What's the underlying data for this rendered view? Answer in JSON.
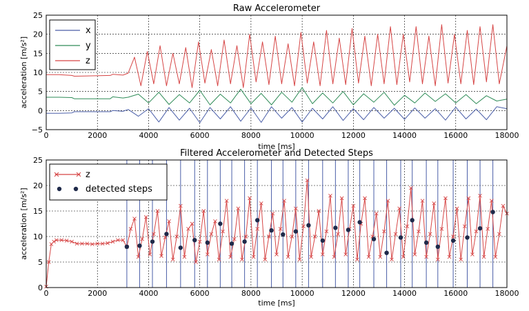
{
  "chart_data": [
    {
      "type": "line",
      "title": "Raw Accelerometer",
      "xlabel": "time [ms]",
      "ylabel": "acceleration [m/s²]",
      "xlim": [
        0,
        18000
      ],
      "ylim": [
        -5,
        25
      ],
      "xticks": [
        "0",
        "2000",
        "4000",
        "6000",
        "8000",
        "10000",
        "12000",
        "14000",
        "16000",
        "18000"
      ],
      "yticks": [
        "−5",
        "0",
        "5",
        "10",
        "15",
        "20",
        "25"
      ],
      "grid": true,
      "legend_position": "top-left",
      "series": [
        {
          "name": "x",
          "color": "#4a5ea8",
          "x": [
            0,
            500,
            1000,
            1100,
            2500,
            2600,
            3000,
            3200,
            3600,
            4000,
            4400,
            4800,
            5200,
            5600,
            6000,
            6400,
            6800,
            7200,
            7600,
            8000,
            8400,
            8800,
            9200,
            9600,
            10000,
            10400,
            10800,
            11200,
            11600,
            12000,
            12400,
            12800,
            13200,
            13600,
            14000,
            14400,
            14800,
            15200,
            15600,
            16000,
            16400,
            16800,
            17200,
            17600,
            18000
          ],
          "values": [
            -0.7,
            -0.7,
            -0.6,
            -0.3,
            -0.3,
            0.0,
            -0.2,
            0.3,
            -1.5,
            0.5,
            -3.0,
            0.8,
            -2.5,
            0.6,
            -3.2,
            0.8,
            -2.2,
            1.0,
            -2.8,
            0.7,
            -3.1,
            1.0,
            -2.0,
            0.8,
            -3.0,
            0.6,
            -2.2,
            1.0,
            -2.6,
            0.5,
            -2.4,
            0.8,
            -2.0,
            0.6,
            -2.3,
            0.7,
            -2.0,
            0.5,
            -2.5,
            0.9,
            -2.2,
            0.4,
            -2.4,
            1.0,
            0.5
          ]
        },
        {
          "name": "y",
          "color": "#2e8b57",
          "x": [
            0,
            500,
            1000,
            1100,
            2500,
            2600,
            3000,
            3200,
            3600,
            4000,
            4400,
            4800,
            5200,
            5600,
            6000,
            6400,
            6800,
            7200,
            7600,
            8000,
            8400,
            8800,
            9200,
            9600,
            10000,
            10400,
            10800,
            11200,
            11600,
            12000,
            12400,
            12800,
            13200,
            13600,
            14000,
            14400,
            14800,
            15200,
            15600,
            16000,
            16400,
            16800,
            17200,
            17600,
            18000
          ],
          "values": [
            3.5,
            3.5,
            3.4,
            3.1,
            3.1,
            3.6,
            3.3,
            3.5,
            4.3,
            2.0,
            4.8,
            1.6,
            4.2,
            2.0,
            5.3,
            1.5,
            4.3,
            2.0,
            5.6,
            1.8,
            4.5,
            1.5,
            4.8,
            2.2,
            6.0,
            1.8,
            4.6,
            2.0,
            5.0,
            1.5,
            4.4,
            2.2,
            4.8,
            1.4,
            4.0,
            2.0,
            4.6,
            2.4,
            4.4,
            2.0,
            4.2,
            1.8,
            3.9,
            2.5,
            3.0
          ]
        },
        {
          "name": "z",
          "color": "#d64545",
          "x": [
            0,
            500,
            1000,
            1100,
            2500,
            2600,
            3000,
            3200,
            3450,
            3700,
            3950,
            4200,
            4450,
            4700,
            4950,
            5200,
            5450,
            5700,
            5950,
            6200,
            6450,
            6700,
            6950,
            7200,
            7450,
            7700,
            7950,
            8200,
            8450,
            8700,
            8950,
            9200,
            9450,
            9700,
            9950,
            10200,
            10450,
            10700,
            10950,
            11200,
            11450,
            11700,
            11950,
            12200,
            12450,
            12700,
            12950,
            13200,
            13450,
            13700,
            13950,
            14200,
            14450,
            14700,
            14950,
            15200,
            15450,
            15700,
            15950,
            16200,
            16450,
            16700,
            16950,
            17200,
            17450,
            17700,
            18000
          ],
          "values": [
            9.4,
            9.4,
            9.2,
            9.0,
            9.2,
            9.5,
            9.3,
            9.8,
            14.0,
            6.5,
            15.5,
            7.0,
            17.0,
            6.5,
            15.0,
            7.0,
            16.5,
            6.0,
            18.0,
            7.2,
            16.0,
            6.5,
            18.5,
            7.0,
            17.0,
            6.0,
            20.0,
            7.5,
            18.0,
            6.8,
            19.5,
            7.0,
            17.5,
            6.5,
            20.5,
            7.2,
            18.0,
            6.5,
            21.0,
            7.0,
            19.0,
            6.8,
            21.5,
            7.2,
            19.5,
            6.5,
            20.0,
            7.0,
            22.0,
            6.8,
            20.0,
            7.5,
            22.0,
            7.0,
            19.5,
            6.5,
            22.5,
            7.2,
            20.0,
            7.0,
            21.0,
            6.8,
            22.0,
            7.5,
            22.5,
            7.0,
            17.0
          ]
        }
      ]
    },
    {
      "type": "line",
      "title": "Filtered Accelerometer and Detected Steps",
      "xlabel": "time [ms]",
      "ylabel": "acceleration [m/s²]",
      "xlim": [
        0,
        18000
      ],
      "ylim": [
        0,
        25
      ],
      "xticks": [
        "0",
        "2000",
        "4000",
        "6000",
        "8000",
        "10000",
        "12000",
        "14000",
        "16000",
        "18000"
      ],
      "yticks": [
        "0",
        "5",
        "10",
        "15",
        "20",
        "25"
      ],
      "grid": true,
      "legend_position": "top-left",
      "series": [
        {
          "name": "z",
          "color": "#d64545",
          "marker": "x",
          "x": [
            0,
            100,
            200,
            300,
            400,
            600,
            800,
            1000,
            1200,
            1400,
            1600,
            1800,
            2000,
            2200,
            2400,
            2600,
            2800,
            3000,
            3150,
            3300,
            3450,
            3600,
            3750,
            3900,
            4050,
            4200,
            4350,
            4500,
            4650,
            4800,
            4950,
            5100,
            5250,
            5400,
            5550,
            5700,
            5850,
            6000,
            6150,
            6300,
            6450,
            6600,
            6750,
            6900,
            7050,
            7200,
            7350,
            7500,
            7650,
            7800,
            7950,
            8100,
            8250,
            8400,
            8550,
            8700,
            8850,
            9000,
            9150,
            9300,
            9450,
            9600,
            9750,
            9900,
            10050,
            10200,
            10350,
            10500,
            10650,
            10800,
            10950,
            11100,
            11250,
            11400,
            11550,
            11700,
            11850,
            12000,
            12150,
            12300,
            12450,
            12600,
            12750,
            12900,
            13050,
            13200,
            13350,
            13500,
            13650,
            13800,
            13950,
            14100,
            14250,
            14400,
            14550,
            14700,
            14850,
            15000,
            15150,
            15300,
            15450,
            15600,
            15750,
            15900,
            16050,
            16200,
            16350,
            16500,
            16650,
            16800,
            16950,
            17100,
            17250,
            17400,
            17550,
            17700,
            17850,
            18000
          ],
          "values": [
            0.2,
            5.0,
            8.5,
            9.0,
            9.3,
            9.3,
            9.2,
            9.0,
            8.6,
            8.6,
            8.6,
            8.5,
            8.6,
            8.6,
            8.7,
            9.0,
            9.3,
            9.3,
            8.0,
            11.5,
            13.5,
            6.0,
            9.5,
            13.8,
            6.5,
            10.5,
            15.0,
            6.2,
            9.8,
            13.0,
            5.5,
            10.0,
            16.0,
            6.0,
            11.5,
            12.5,
            5.0,
            9.0,
            15.0,
            6.5,
            10.5,
            13.0,
            5.5,
            11.0,
            17.0,
            6.0,
            9.5,
            15.5,
            5.5,
            10.0,
            17.5,
            6.0,
            11.5,
            16.5,
            5.5,
            10.0,
            14.5,
            6.5,
            11.5,
            17.0,
            6.0,
            10.0,
            15.5,
            5.5,
            12.0,
            21.0,
            6.0,
            10.0,
            15.0,
            6.5,
            11.0,
            18.0,
            6.0,
            10.5,
            17.5,
            6.5,
            11.5,
            16.0,
            5.5,
            12.5,
            17.5,
            6.0,
            10.0,
            14.5,
            6.0,
            11.0,
            17.0,
            5.5,
            10.5,
            15.5,
            6.0,
            12.0,
            19.5,
            6.5,
            11.0,
            17.0,
            6.0,
            10.5,
            16.5,
            5.5,
            11.5,
            17.5,
            6.0,
            10.0,
            15.5,
            5.5,
            12.0,
            17.5,
            6.5,
            11.0,
            18.0,
            6.0,
            11.5,
            17.0,
            6.0,
            10.5,
            16.0,
            14.5
          ]
        },
        {
          "name": "detected steps",
          "color": "#1f2a4a",
          "marker": "o",
          "x": [
            3150,
            3650,
            4150,
            4700,
            5250,
            5800,
            6300,
            6800,
            7250,
            7750,
            8250,
            8800,
            9250,
            9750,
            10250,
            10800,
            11300,
            11800,
            12250,
            12800,
            13300,
            13850,
            14300,
            14850,
            15300,
            15900,
            16450,
            16950,
            17450
          ],
          "values": [
            8.0,
            8.2,
            9.0,
            10.5,
            7.8,
            9.3,
            8.8,
            12.5,
            8.6,
            9.0,
            13.2,
            11.2,
            10.4,
            11.0,
            12.2,
            9.2,
            11.7,
            11.3,
            12.8,
            9.5,
            6.8,
            9.8,
            13.2,
            8.8,
            8.0,
            9.2,
            9.8,
            11.6,
            14.8
          ]
        }
      ],
      "vertical_lines_color": "#4a5ea8"
    }
  ]
}
